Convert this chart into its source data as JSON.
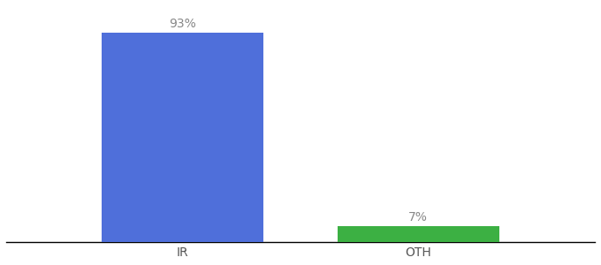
{
  "categories": [
    "IR",
    "OTH"
  ],
  "values": [
    93,
    7
  ],
  "bar_colors": [
    "#4f6fda",
    "#3cb043"
  ],
  "labels": [
    "93%",
    "7%"
  ],
  "ylim": [
    0,
    105
  ],
  "background_color": "#ffffff",
  "label_fontsize": 10,
  "tick_fontsize": 10,
  "bar_width": 0.55,
  "xlim": [
    -0.3,
    1.7
  ]
}
